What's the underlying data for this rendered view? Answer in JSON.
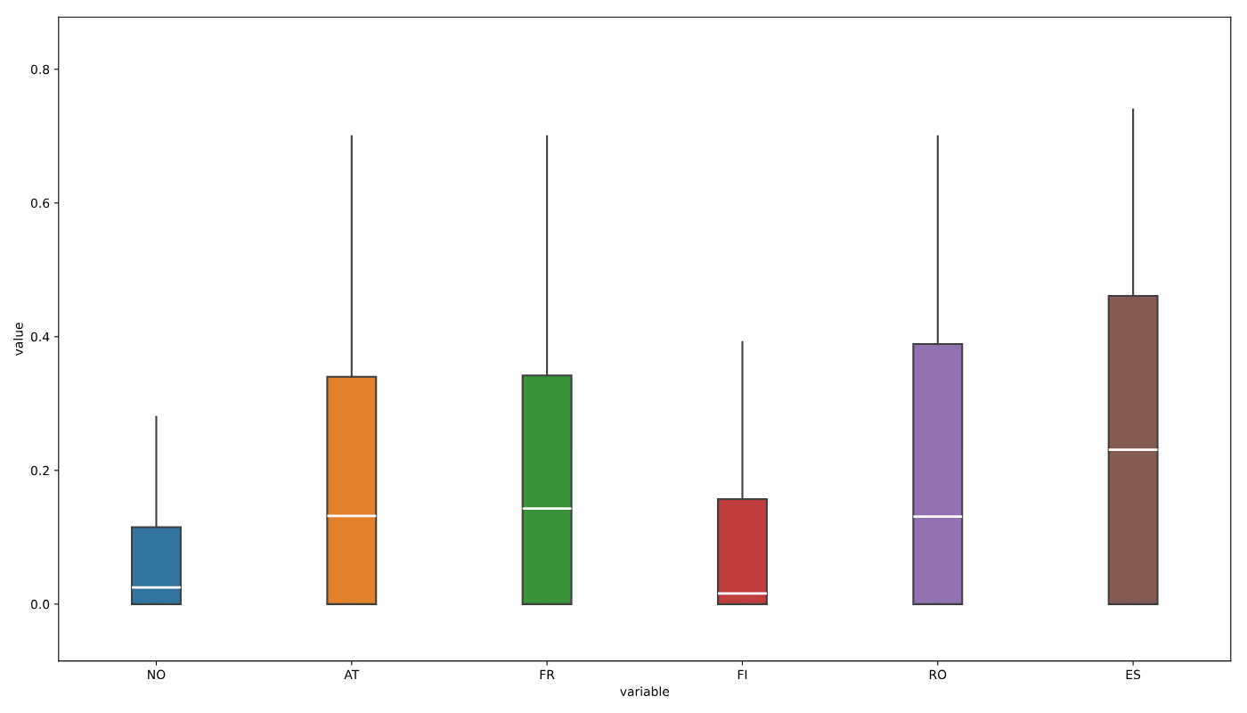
{
  "chart_data": {
    "type": "box",
    "xlabel": "variable",
    "ylabel": "value",
    "categories": [
      "NO",
      "AT",
      "FR",
      "FI",
      "RO",
      "ES"
    ],
    "colors": [
      "#3274a1",
      "#e1812c",
      "#3a923a",
      "#c03d3e",
      "#9372b2",
      "#845b53"
    ],
    "boxes": [
      {
        "low": 0,
        "q1": 0,
        "median": 0.025,
        "q3": 0.115,
        "high": 0.28
      },
      {
        "low": 0,
        "q1": 0,
        "median": 0.132,
        "q3": 0.34,
        "high": 0.7
      },
      {
        "low": 0,
        "q1": 0,
        "median": 0.143,
        "q3": 0.342,
        "high": 0.7
      },
      {
        "low": 0,
        "q1": 0,
        "median": 0.016,
        "q3": 0.157,
        "high": 0.392
      },
      {
        "low": 0,
        "q1": 0,
        "median": 0.131,
        "q3": 0.389,
        "high": 0.7
      },
      {
        "low": 0,
        "q1": 0,
        "median": 0.231,
        "q3": 0.461,
        "high": 0.74
      }
    ],
    "ylim": [
      -0.085,
      0.878
    ],
    "yticks": [
      {
        "value": 0,
        "label": "0.0"
      },
      0.2,
      0.4,
      0.6,
      0.8
    ],
    "grid": false
  }
}
